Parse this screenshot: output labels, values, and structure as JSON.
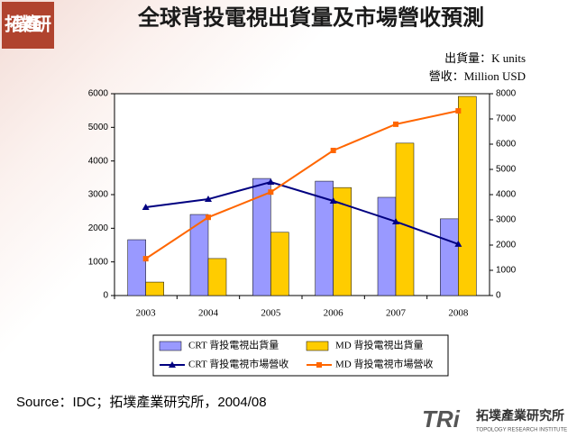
{
  "logo": {
    "corner": "拓墣產研",
    "brand": "TRi",
    "name": "拓墣產業研究所",
    "name_en": "TOPOLOGY RESEARCH INSTITUTE"
  },
  "chart_data": {
    "type": "combo",
    "title": "全球背投電視出貨量及市場營收預測",
    "unit_notes": [
      "出貨量：K units",
      "營收：Million USD"
    ],
    "categories": [
      "2003",
      "2004",
      "2005",
      "2006",
      "2007",
      "2008"
    ],
    "series": [
      {
        "name": "CRT 背投電視出貨量",
        "type": "bar",
        "color": "#9999ff",
        "values": [
          1660,
          2410,
          3480,
          3400,
          2920,
          2280
        ]
      },
      {
        "name": "MD 背投電視出貨量",
        "type": "bar",
        "color": "#ffcc00",
        "values": [
          400,
          1100,
          1880,
          3210,
          4530,
          5920
        ]
      },
      {
        "name": "CRT 背投電視市場營收",
        "type": "line",
        "marker": "triangle",
        "axis": "y2",
        "color": "#000080",
        "values": [
          3500,
          3820,
          4500,
          3750,
          2930,
          2040
        ]
      },
      {
        "name": "MD 背投電視市場營收",
        "type": "line",
        "marker": "square",
        "axis": "y2",
        "color": "#ff6600",
        "values": [
          1460,
          3100,
          4100,
          5750,
          6790,
          7320
        ]
      }
    ],
    "ylim": [
      0,
      6000
    ],
    "yticks": [
      0,
      1000,
      2000,
      3000,
      4000,
      5000,
      6000
    ],
    "y2lim": [
      0,
      8000
    ],
    "y2ticks": [
      0,
      1000,
      2000,
      3000,
      4000,
      5000,
      6000,
      7000,
      8000
    ],
    "source": "Source：IDC；拓墣產業研究所，2004/08"
  }
}
